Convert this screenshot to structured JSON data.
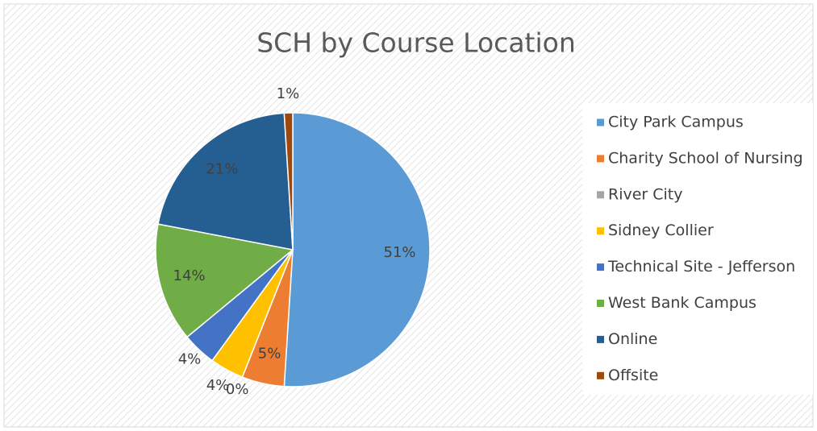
{
  "chart_data": {
    "type": "pie",
    "title": "SCH by Course Location",
    "categories": [
      "City Park Campus",
      "Charity School of Nursing",
      "River City",
      "Sidney Collier",
      "Technical Site - Jefferson",
      "West Bank Campus",
      "Online",
      "Offsite"
    ],
    "values": [
      51,
      5,
      0,
      4,
      4,
      14,
      21,
      1
    ],
    "value_labels": [
      "51%",
      "5%",
      "0%",
      "4%",
      "4%",
      "14%",
      "21%",
      "1%"
    ],
    "colors": [
      "#5b9bd5",
      "#ed7d31",
      "#a5a5a5",
      "#ffc000",
      "#4472c4",
      "#70ad47",
      "#255e91",
      "#9e480e"
    ],
    "legend": "right"
  }
}
